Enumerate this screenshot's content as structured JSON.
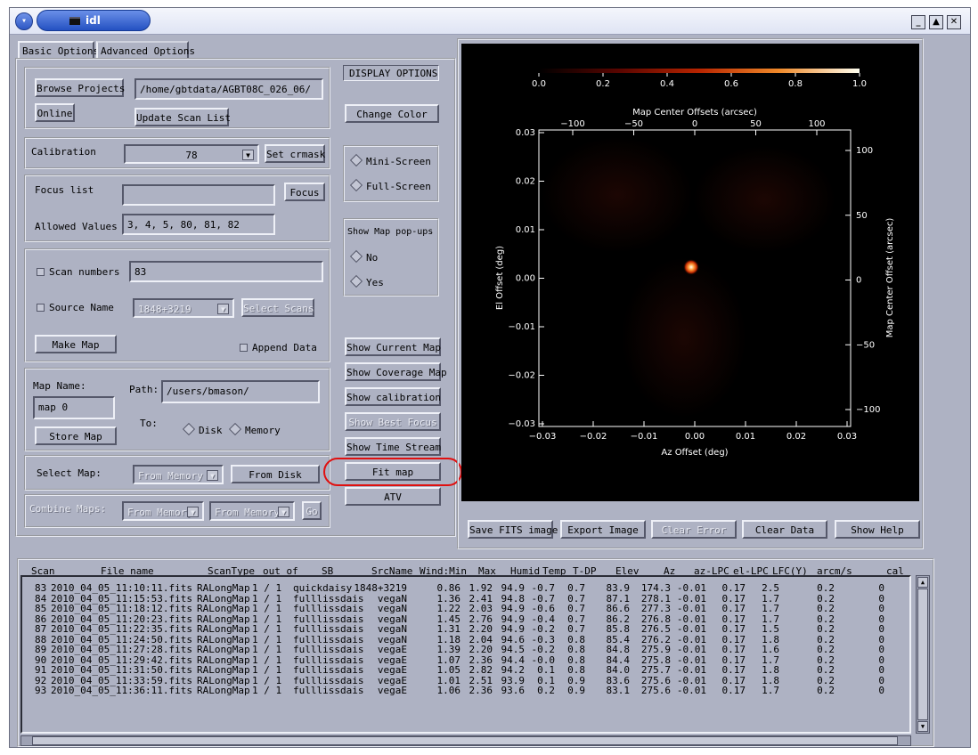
{
  "window": {
    "title": "idl"
  },
  "tabs": [
    {
      "label": "Basic Options"
    },
    {
      "label": "Advanced Options"
    }
  ],
  "project": {
    "browse_label": "Browse Projects",
    "online_label": "Online",
    "path_value": "/home/gbtdata/AGBT08C_026_06/",
    "update_label": "Update Scan List"
  },
  "calibration": {
    "label": "Calibration",
    "value": "78",
    "crmask_label": "Set crmask"
  },
  "focus": {
    "list_label": "Focus list",
    "list_value": "",
    "button_label": "Focus",
    "allowed_label": "Allowed Values",
    "allowed_value": "3, 4, 5, 80, 81, 82"
  },
  "scans": {
    "scan_numbers_label": "Scan numbers",
    "scan_numbers_value": "83",
    "source_name_label": "Source Name",
    "source_value": "1848+3219",
    "select_scans_label": "Select Scans",
    "make_map_label": "Make Map",
    "append_label": "Append Data"
  },
  "store": {
    "map_name_label": "Map Name:",
    "map_name_value": "map 0",
    "path_label": "Path:",
    "path_value": "/users/bmason/",
    "to_label": "To:",
    "disk_label": "Disk",
    "memory_label": "Memory",
    "store_label": "Store Map"
  },
  "select_map": {
    "label": "Select Map:",
    "from_memory": "From Memory",
    "from_disk": "From Disk"
  },
  "combine": {
    "label": "Combine Maps:",
    "from_memory_1": "From Memory",
    "from_memory_2": "From Memory",
    "go_label": "Go"
  },
  "display": {
    "title": "DISPLAY OPTIONS",
    "change_color": "Change Color",
    "mini_screen": "Mini-Screen",
    "full_screen": "Full-Screen",
    "popups_label": "Show Map pop-ups",
    "no_label": "No",
    "yes_label": "Yes",
    "show_current": "Show Current Map",
    "show_coverage": "Show Coverage Map",
    "show_calibration": "Show calibration",
    "show_best_focus": "Show Best Focus",
    "show_time_stream": "Show Time Stream",
    "fit_map": "Fit map",
    "atv": "ATV"
  },
  "bottom_buttons": {
    "save_fits": "Save FITS image",
    "export_image": "Export Image",
    "clear_error": "Clear Error",
    "clear_data": "Clear Data",
    "show_help": "Show Help"
  },
  "plot": {
    "colorbar_ticks": [
      "0.0",
      "0.2",
      "0.4",
      "0.6",
      "0.8",
      "1.0"
    ],
    "top_axis_label": "Map Center Offsets (arcsec)",
    "top_ticks": [
      "−100",
      "−50",
      "0",
      "50",
      "100"
    ],
    "bottom_axis_label": "Az Offset (deg)",
    "bottom_ticks": [
      "−0.03",
      "−0.02",
      "−0.01",
      "0.00",
      "0.01",
      "0.02",
      "0.03"
    ],
    "left_axis_label": "El Offset (deg)",
    "left_ticks": [
      "0.03",
      "0.02",
      "0.01",
      "0.00",
      "−0.01",
      "−0.02",
      "−0.03"
    ],
    "right_axis_label": "Map Center Offset (arcsec)",
    "right_ticks": [
      "100",
      "50",
      "0",
      "−50",
      "−100"
    ]
  },
  "table": {
    "headers": [
      "Scan",
      "File name",
      "ScanType",
      "out of",
      "SB",
      "SrcName",
      "Wind:Min",
      "Max",
      "Humid",
      "Temp",
      "T-DP",
      "Elev",
      "Az",
      "az-LPC",
      "el-LPC",
      "LFC(Y)",
      "arcm/s",
      "cal"
    ],
    "rows": [
      [
        "83",
        "2010_04_05_11:10:11.fits",
        "RALongMap",
        "1 / 1",
        "quickdaisy",
        "1848+3219",
        "0.86",
        "1.92",
        "94.9",
        "-0.7",
        "0.7",
        "83.9",
        "174.3",
        "-0.01",
        "0.17",
        "2.5",
        "0.2",
        "0"
      ],
      [
        "84",
        "2010_04_05_11:15:53.fits",
        "RALongMap",
        "1 / 1",
        "fulllissdais",
        "vegaN",
        "1.36",
        "2.41",
        "94.8",
        "-0.7",
        "0.7",
        "87.1",
        "278.1",
        "-0.01",
        "0.17",
        "1.7",
        "0.2",
        "0"
      ],
      [
        "85",
        "2010_04_05_11:18:12.fits",
        "RALongMap",
        "1 / 1",
        "fulllissdais",
        "vegaN",
        "1.22",
        "2.03",
        "94.9",
        "-0.6",
        "0.7",
        "86.6",
        "277.3",
        "-0.01",
        "0.17",
        "1.7",
        "0.2",
        "0"
      ],
      [
        "86",
        "2010_04_05_11:20:23.fits",
        "RALongMap",
        "1 / 1",
        "fulllissdais",
        "vegaN",
        "1.45",
        "2.76",
        "94.9",
        "-0.4",
        "0.7",
        "86.2",
        "276.8",
        "-0.01",
        "0.17",
        "1.7",
        "0.2",
        "0"
      ],
      [
        "87",
        "2010_04_05_11:22:35.fits",
        "RALongMap",
        "1 / 1",
        "fulllissdais",
        "vegaN",
        "1.31",
        "2.20",
        "94.9",
        "-0.2",
        "0.7",
        "85.8",
        "276.5",
        "-0.01",
        "0.17",
        "1.5",
        "0.2",
        "0"
      ],
      [
        "88",
        "2010_04_05_11:24:50.fits",
        "RALongMap",
        "1 / 1",
        "fulllissdais",
        "vegaN",
        "1.18",
        "2.04",
        "94.6",
        "-0.3",
        "0.8",
        "85.4",
        "276.2",
        "-0.01",
        "0.17",
        "1.8",
        "0.2",
        "0"
      ],
      [
        "89",
        "2010_04_05_11:27:28.fits",
        "RALongMap",
        "1 / 1",
        "fulllissdais",
        "vegaE",
        "1.39",
        "2.20",
        "94.5",
        "-0.2",
        "0.8",
        "84.8",
        "275.9",
        "-0.01",
        "0.17",
        "1.6",
        "0.2",
        "0"
      ],
      [
        "90",
        "2010_04_05_11:29:42.fits",
        "RALongMap",
        "1 / 1",
        "fulllissdais",
        "vegaE",
        "1.07",
        "2.36",
        "94.4",
        "-0.0",
        "0.8",
        "84.4",
        "275.8",
        "-0.01",
        "0.17",
        "1.7",
        "0.2",
        "0"
      ],
      [
        "91",
        "2010_04_05_11:31:50.fits",
        "RALongMap",
        "1 / 1",
        "fulllissdais",
        "vegaE",
        "1.05",
        "2.82",
        "94.2",
        "0.1",
        "0.8",
        "84.0",
        "275.7",
        "-0.01",
        "0.17",
        "1.8",
        "0.2",
        "0"
      ],
      [
        "92",
        "2010_04_05_11:33:59.fits",
        "RALongMap",
        "1 / 1",
        "fulllissdais",
        "vegaE",
        "1.01",
        "2.51",
        "93.9",
        "0.1",
        "0.9",
        "83.6",
        "275.6",
        "-0.01",
        "0.17",
        "1.8",
        "0.2",
        "0"
      ],
      [
        "93",
        "2010_04_05_11:36:11.fits",
        "RALongMap",
        "1 / 1",
        "fulllissdais",
        "vegaE",
        "1.06",
        "2.36",
        "93.6",
        "0.2",
        "0.9",
        "83.1",
        "275.6",
        "-0.01",
        "0.17",
        "1.7",
        "0.2",
        "0"
      ]
    ]
  },
  "colors": {
    "window_bg": "#aeb2c3",
    "title_accent": "#2d57c4",
    "highlight_circle": "#e01010",
    "plot_bg": "#000000"
  }
}
